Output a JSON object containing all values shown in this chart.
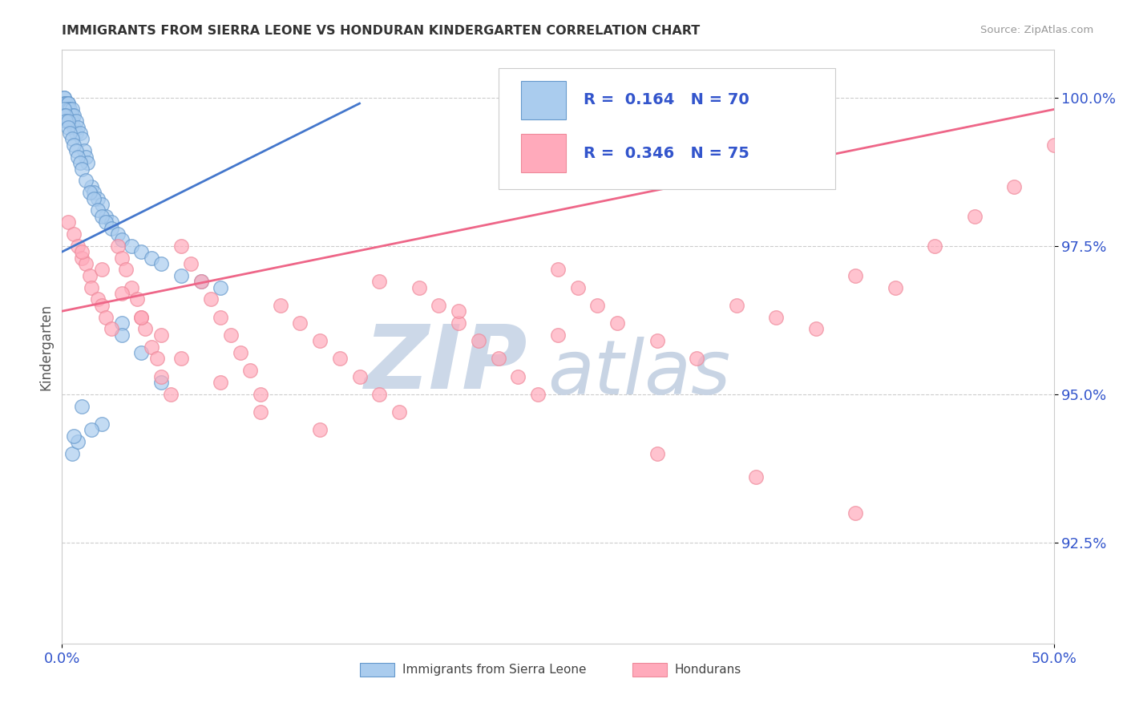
{
  "title": "IMMIGRANTS FROM SIERRA LEONE VS HONDURAN KINDERGARTEN CORRELATION CHART",
  "source": "Source: ZipAtlas.com",
  "ylabel": "Kindergarten",
  "x_min": 0.0,
  "x_max": 0.5,
  "y_min": 0.908,
  "y_max": 1.008,
  "y_ticks": [
    0.925,
    0.95,
    0.975,
    1.0
  ],
  "y_tick_labels": [
    "92.5%",
    "95.0%",
    "97.5%",
    "100.0%"
  ],
  "x_tick_labels": [
    "0.0%",
    "50.0%"
  ],
  "legend_text_color": "#3355cc",
  "blue_face_color": "#aaccee",
  "blue_edge_color": "#6699cc",
  "pink_face_color": "#ffaabb",
  "pink_edge_color": "#ee8899",
  "blue_line_color": "#4477cc",
  "pink_line_color": "#ee6688",
  "watermark_zip": "ZIP",
  "watermark_atlas": "atlas",
  "watermark_color_zip": "#ccd8e8",
  "watermark_color_atlas": "#c8d4e4",
  "background_color": "#ffffff",
  "grid_color": "#cccccc",
  "title_color": "#333333",
  "tick_color": "#3355cc",
  "blue_R": 0.164,
  "blue_N": 70,
  "pink_R": 0.346,
  "pink_N": 75,
  "blue_trend": [
    0.0,
    0.974,
    0.15,
    0.999
  ],
  "pink_trend": [
    0.0,
    0.964,
    0.5,
    0.998
  ],
  "blue_x": [
    0.001,
    0.001,
    0.001,
    0.002,
    0.002,
    0.003,
    0.003,
    0.003,
    0.003,
    0.004,
    0.004,
    0.004,
    0.005,
    0.005,
    0.005,
    0.006,
    0.006,
    0.007,
    0.007,
    0.008,
    0.009,
    0.01,
    0.011,
    0.012,
    0.013,
    0.015,
    0.016,
    0.018,
    0.02,
    0.022,
    0.025,
    0.001,
    0.001,
    0.002,
    0.002,
    0.003,
    0.003,
    0.004,
    0.005,
    0.006,
    0.007,
    0.008,
    0.009,
    0.01,
    0.012,
    0.014,
    0.016,
    0.018,
    0.02,
    0.022,
    0.025,
    0.028,
    0.03,
    0.035,
    0.04,
    0.045,
    0.05,
    0.06,
    0.07,
    0.08,
    0.03,
    0.03,
    0.04,
    0.05,
    0.02,
    0.01,
    0.005,
    0.015,
    0.008,
    0.006
  ],
  "blue_y": [
    1.0,
    1.0,
    0.999,
    0.999,
    0.999,
    0.999,
    0.999,
    0.998,
    0.997,
    0.998,
    0.997,
    0.996,
    0.998,
    0.997,
    0.996,
    0.997,
    0.995,
    0.996,
    0.994,
    0.995,
    0.994,
    0.993,
    0.991,
    0.99,
    0.989,
    0.985,
    0.984,
    0.983,
    0.982,
    0.98,
    0.979,
    0.998,
    0.997,
    0.997,
    0.996,
    0.996,
    0.995,
    0.994,
    0.993,
    0.992,
    0.991,
    0.99,
    0.989,
    0.988,
    0.986,
    0.984,
    0.983,
    0.981,
    0.98,
    0.979,
    0.978,
    0.977,
    0.976,
    0.975,
    0.974,
    0.973,
    0.972,
    0.97,
    0.969,
    0.968,
    0.962,
    0.96,
    0.957,
    0.952,
    0.945,
    0.948,
    0.94,
    0.944,
    0.942,
    0.943
  ],
  "pink_x": [
    0.003,
    0.006,
    0.008,
    0.01,
    0.012,
    0.014,
    0.015,
    0.018,
    0.02,
    0.022,
    0.025,
    0.028,
    0.03,
    0.032,
    0.035,
    0.038,
    0.04,
    0.042,
    0.045,
    0.048,
    0.05,
    0.055,
    0.06,
    0.065,
    0.07,
    0.075,
    0.08,
    0.085,
    0.09,
    0.095,
    0.1,
    0.11,
    0.12,
    0.13,
    0.14,
    0.15,
    0.16,
    0.17,
    0.18,
    0.19,
    0.2,
    0.21,
    0.22,
    0.23,
    0.24,
    0.25,
    0.26,
    0.27,
    0.28,
    0.3,
    0.32,
    0.34,
    0.36,
    0.38,
    0.4,
    0.42,
    0.44,
    0.46,
    0.48,
    0.5,
    0.01,
    0.02,
    0.03,
    0.04,
    0.05,
    0.06,
    0.08,
    0.1,
    0.13,
    0.16,
    0.2,
    0.25,
    0.3,
    0.35,
    0.4
  ],
  "pink_y": [
    0.979,
    0.977,
    0.975,
    0.973,
    0.972,
    0.97,
    0.968,
    0.966,
    0.965,
    0.963,
    0.961,
    0.975,
    0.973,
    0.971,
    0.968,
    0.966,
    0.963,
    0.961,
    0.958,
    0.956,
    0.953,
    0.95,
    0.975,
    0.972,
    0.969,
    0.966,
    0.963,
    0.96,
    0.957,
    0.954,
    0.95,
    0.965,
    0.962,
    0.959,
    0.956,
    0.953,
    0.95,
    0.947,
    0.968,
    0.965,
    0.962,
    0.959,
    0.956,
    0.953,
    0.95,
    0.971,
    0.968,
    0.965,
    0.962,
    0.959,
    0.956,
    0.965,
    0.963,
    0.961,
    0.97,
    0.968,
    0.975,
    0.98,
    0.985,
    0.992,
    0.974,
    0.971,
    0.967,
    0.963,
    0.96,
    0.956,
    0.952,
    0.947,
    0.944,
    0.969,
    0.964,
    0.96,
    0.94,
    0.936,
    0.93
  ]
}
